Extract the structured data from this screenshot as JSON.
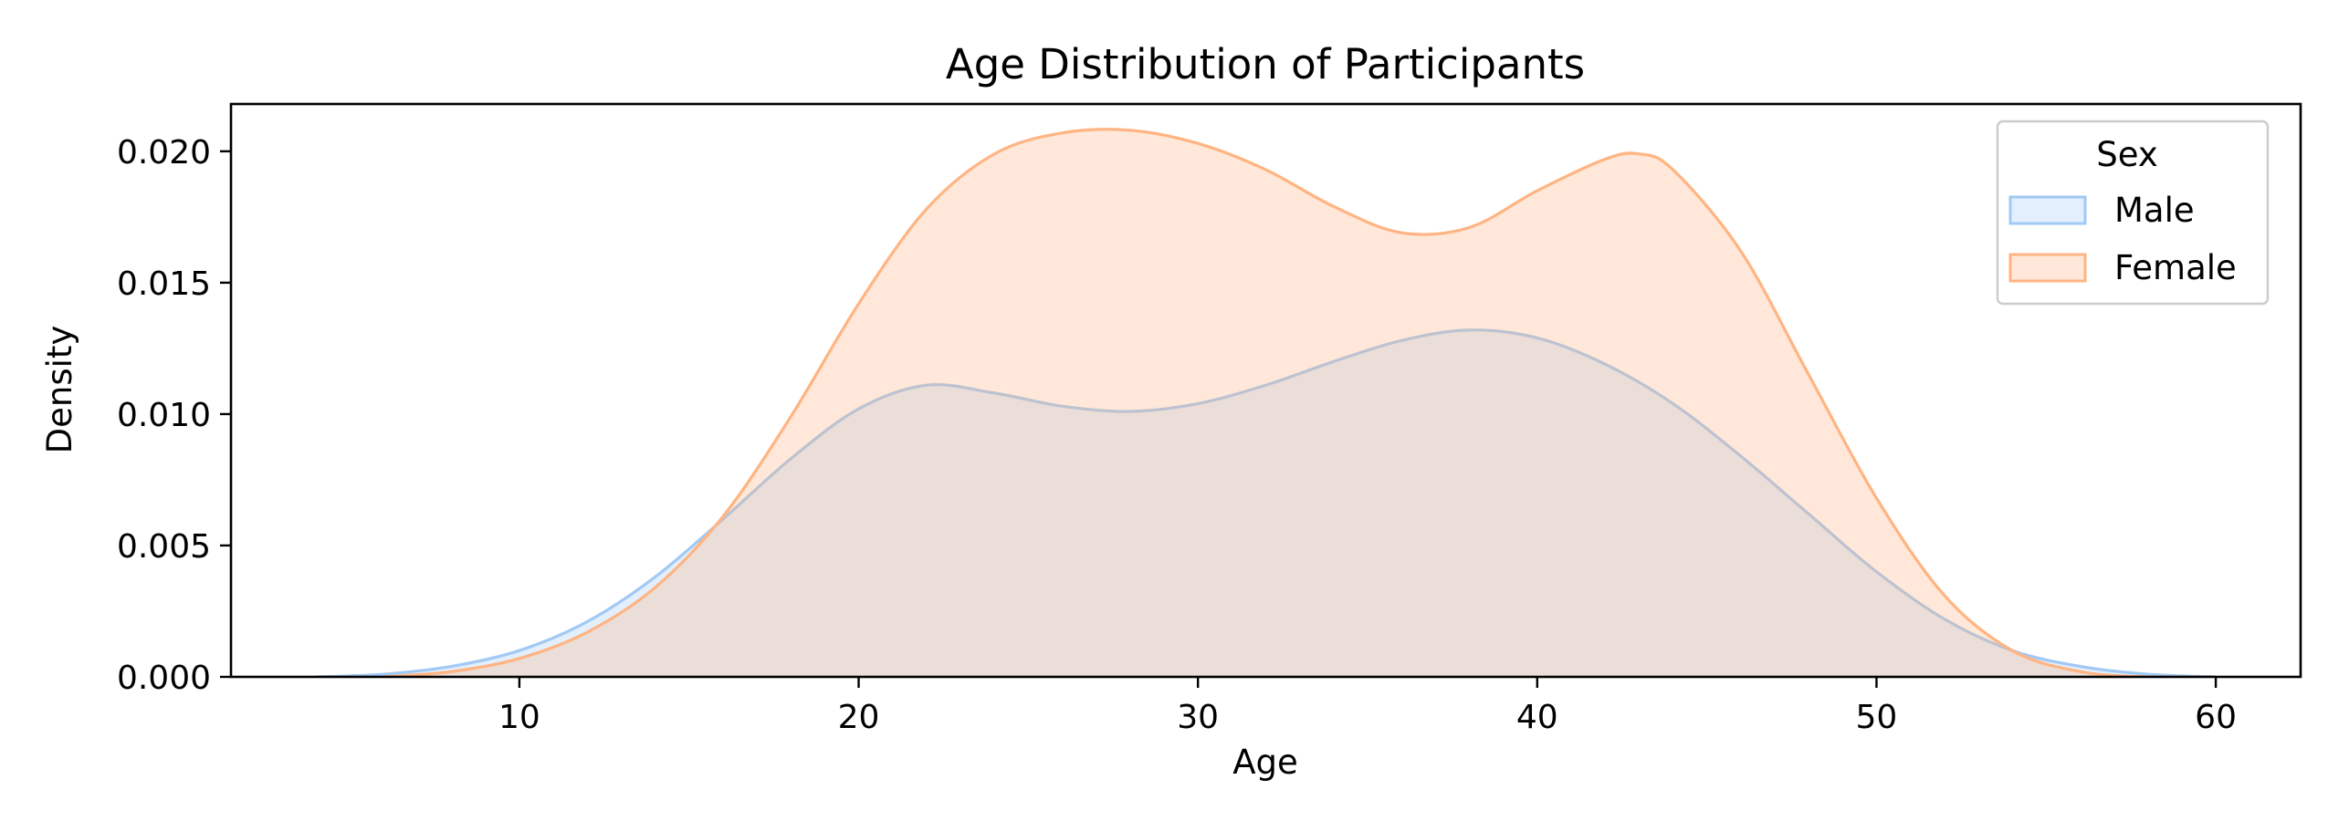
{
  "chart_data": {
    "type": "area",
    "title": "Age Distribution of Participants",
    "xlabel": "Age",
    "ylabel": "Density",
    "xlim": [
      1.5,
      62.5
    ],
    "ylim": [
      0,
      0.0218
    ],
    "x_ticks": [
      10,
      20,
      30,
      40,
      50,
      60
    ],
    "y_ticks": [
      0.0,
      0.005,
      0.01,
      0.015,
      0.02
    ],
    "y_tick_labels": [
      "0.000",
      "0.005",
      "0.010",
      "0.015",
      "0.020"
    ],
    "grid": false,
    "legend": {
      "title": "Sex",
      "placement": "top-right",
      "entries": [
        "Male",
        "Female"
      ]
    },
    "series": [
      {
        "name": "Male",
        "color": "#a1c9f4",
        "fill_opacity": 0.3,
        "x": [
          4,
          6,
          8,
          10,
          12,
          14,
          16,
          18,
          20,
          22,
          24,
          26,
          28,
          30,
          32,
          34,
          36,
          38,
          40,
          42,
          44,
          46,
          48,
          50,
          52,
          54,
          56,
          58,
          60
        ],
        "values": [
          0.0,
          0.0001,
          0.0004,
          0.001,
          0.0021,
          0.0038,
          0.006,
          0.0083,
          0.0102,
          0.0111,
          0.0108,
          0.0103,
          0.0101,
          0.0104,
          0.0111,
          0.012,
          0.0128,
          0.0132,
          0.0129,
          0.0119,
          0.0104,
          0.0084,
          0.0062,
          0.004,
          0.0022,
          0.001,
          0.0004,
          0.0001,
          0.0
        ]
      },
      {
        "name": "Female",
        "color": "#ffb482",
        "fill_opacity": 0.3,
        "x": [
          6,
          8,
          10,
          12,
          14,
          16,
          18,
          20,
          22,
          24,
          26,
          28,
          30,
          32,
          34,
          36,
          38,
          40,
          42,
          43,
          44,
          46,
          48,
          50,
          52,
          54,
          56,
          58,
          60
        ],
        "values": [
          0.0,
          0.0002,
          0.0007,
          0.0017,
          0.0034,
          0.0061,
          0.0099,
          0.0142,
          0.0178,
          0.0199,
          0.0207,
          0.0208,
          0.0203,
          0.0193,
          0.0179,
          0.0169,
          0.0171,
          0.0185,
          0.0197,
          0.0199,
          0.0193,
          0.0162,
          0.0115,
          0.0068,
          0.0031,
          0.001,
          0.0002,
          0.0,
          0.0
        ]
      }
    ]
  }
}
